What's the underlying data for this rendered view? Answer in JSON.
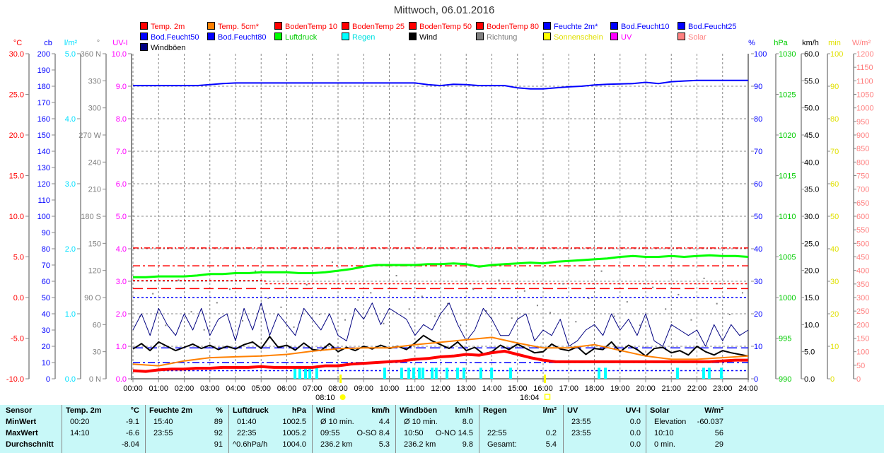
{
  "title": "Mittwoch, 06.01.2016",
  "legend": [
    {
      "label": "Temp. 2m",
      "color": "#ff0000",
      "text": "#ff0000"
    },
    {
      "label": "Temp. 5cm*",
      "color": "#ff8000",
      "text": "#ff0000"
    },
    {
      "label": "BodenTemp 10",
      "color": "#ff0000",
      "text": "#ff0000"
    },
    {
      "label": "BodenTemp 25",
      "color": "#ff0000",
      "text": "#ff0000"
    },
    {
      "label": "BodenTemp 50",
      "color": "#ff0000",
      "text": "#ff0000"
    },
    {
      "label": "BodenTemp 80",
      "color": "#ff0000",
      "text": "#ff0000"
    },
    {
      "label": "Feuchte 2m*",
      "color": "#0000ff",
      "text": "#0000ff"
    },
    {
      "label": "Bod.Feucht10",
      "color": "#0000ff",
      "text": "#0000ff"
    },
    {
      "label": "Bod.Feucht25",
      "color": "#0000ff",
      "text": "#0000ff"
    },
    {
      "label": "Bod.Feucht50",
      "color": "#0000ff",
      "text": "#0000ff"
    },
    {
      "label": "Bod.Feucht80",
      "color": "#0000ff",
      "text": "#0000ff"
    },
    {
      "label": "Luftdruck",
      "color": "#00ff00",
      "text": "#00cc00"
    },
    {
      "label": "Regen",
      "color": "#00ffff",
      "text": "#00e0e0"
    },
    {
      "label": "Wind",
      "color": "#000000",
      "text": "#000000"
    },
    {
      "label": "Richtung",
      "color": "#808080",
      "text": "#808080"
    },
    {
      "label": "Sonnenschein",
      "color": "#ffff00",
      "text": "#e0e000"
    },
    {
      "label": "UV",
      "color": "#ff00ff",
      "text": "#ff00ff"
    },
    {
      "label": "Solar",
      "color": "#ff8080",
      "text": "#ff8080"
    },
    {
      "label": "Windböen",
      "color": "#000080",
      "text": "#000000"
    }
  ],
  "chart_data": {
    "type": "line",
    "title": "Mittwoch, 06.01.2016",
    "x_range_hours": [
      0,
      24
    ],
    "x_ticks": [
      "00:00",
      "01:00",
      "02:00",
      "03:00",
      "04:00",
      "05:00",
      "06:00",
      "07:00",
      "08:00",
      "09:00",
      "10:00",
      "11:00",
      "12:00",
      "13:00",
      "14:00",
      "15:00",
      "16:00",
      "17:00",
      "18:00",
      "19:00",
      "20:00",
      "21:00",
      "22:00",
      "23:00",
      "24:00"
    ],
    "axes": {
      "temp": {
        "unit": "°C",
        "color": "#ff0000",
        "min": -10,
        "max": 30,
        "ticks": [
          "30.0",
          "25.0",
          "20.0",
          "15.0",
          "10.0",
          "5.0",
          "0.0",
          "-5.0",
          "-10.0"
        ]
      },
      "cb": {
        "unit": "cb",
        "color": "#0000ff",
        "min": 0,
        "max": 200,
        "ticks": [
          "200",
          "190",
          "180",
          "170",
          "160",
          "150",
          "140",
          "130",
          "120",
          "110",
          "100",
          "90",
          "80",
          "70",
          "60",
          "50",
          "40",
          "30",
          "20",
          "10",
          "0"
        ]
      },
      "rain": {
        "unit": "l/m²",
        "color": "#00e0ff",
        "min": 0,
        "max": 5,
        "ticks": [
          "5.0",
          "4.0",
          "3.0",
          "2.0",
          "1.0",
          "0.0"
        ]
      },
      "dir": {
        "unit": "°",
        "color": "#808080",
        "min": 0,
        "max": 360,
        "ticks": [
          "360 N",
          "330",
          "300",
          "270 W",
          "240",
          "210",
          "180 S",
          "150",
          "120",
          "90 O",
          "60",
          "30",
          "0 N"
        ]
      },
      "uvi": {
        "unit": "UV-I",
        "color": "#ff00ff",
        "min": 0,
        "max": 10,
        "ticks": [
          "10.0",
          "9.0",
          "8.0",
          "7.0",
          "6.0",
          "5.0",
          "4.0",
          "3.0",
          "2.0",
          "1.0",
          "0.0"
        ]
      },
      "hum": {
        "unit": "%",
        "color": "#0000ff",
        "min": 0,
        "max": 100,
        "ticks": [
          "100",
          "90",
          "80",
          "70",
          "60",
          "50",
          "40",
          "30",
          "20",
          "10",
          "0"
        ]
      },
      "press": {
        "unit": "hPa",
        "color": "#00cc00",
        "min": 990,
        "max": 1030,
        "ticks": [
          "1030",
          "1025",
          "1020",
          "1015",
          "1010",
          "1005",
          "1000",
          "995",
          "990"
        ]
      },
      "wind": {
        "unit": "km/h",
        "color": "#000000",
        "min": 0,
        "max": 60,
        "ticks": [
          "60.0",
          "55.0",
          "50.0",
          "45.0",
          "40.0",
          "35.0",
          "30.0",
          "25.0",
          "20.0",
          "15.0",
          "10.0",
          "5.0",
          "0.0"
        ]
      },
      "sun": {
        "unit": "min",
        "color": "#e0e000",
        "min": 0,
        "max": 100,
        "ticks": [
          "100",
          "90",
          "80",
          "70",
          "60",
          "50",
          "40",
          "30",
          "20",
          "10",
          "0"
        ]
      },
      "solar": {
        "unit": "W/m²",
        "color": "#ff8080",
        "min": 0,
        "max": 1200,
        "ticks": [
          "1200",
          "1150",
          "1100",
          "1050",
          "1000",
          "950",
          "900",
          "850",
          "800",
          "750",
          "700",
          "650",
          "600",
          "550",
          "500",
          "450",
          "400",
          "350",
          "300",
          "250",
          "200",
          "150",
          "100",
          "50",
          "0"
        ]
      }
    },
    "series": [
      {
        "name": "Feuchte 2m*",
        "axis": "hum",
        "color": "#0000ff",
        "width": 2,
        "values": [
          90.2,
          90.2,
          90.2,
          90.2,
          90.2,
          90.2,
          90.5,
          90.8,
          91,
          91,
          91,
          91,
          91,
          91,
          91,
          91,
          91,
          91,
          91,
          91,
          91,
          91,
          91,
          90.5,
          90.2,
          90.6,
          90.5,
          90.2,
          90.2,
          90.2,
          89.5,
          89.2,
          89.2,
          89.5,
          89.8,
          90,
          90.4,
          90.6,
          90.7,
          90.8,
          91.2,
          90.8,
          91.4,
          91.6,
          91.8,
          91.8,
          91.8,
          91.8,
          91.8
        ]
      },
      {
        "name": "Luftdruck",
        "axis": "press",
        "color": "#00ff00",
        "width": 3,
        "values": [
          1002.5,
          1002.5,
          1002.6,
          1002.6,
          1002.6,
          1002.7,
          1002.9,
          1002.9,
          1003,
          1003,
          1003.1,
          1003.1,
          1003.1,
          1003,
          1003,
          1003.1,
          1003.3,
          1003.5,
          1003.8,
          1004,
          1004,
          1004,
          1004,
          1004.1,
          1004.1,
          1004.2,
          1004.1,
          1003.8,
          1004,
          1004.1,
          1004.2,
          1004.3,
          1004.2,
          1004.4,
          1004.5,
          1004.6,
          1004.7,
          1004.8,
          1005,
          1005.1,
          1005,
          1005,
          1005.1,
          1005,
          1005.1,
          1005.2,
          1005.1,
          1005.1,
          1005
        ]
      },
      {
        "name": "Windböen",
        "axis": "wind",
        "color": "#000080",
        "width": 1,
        "values": [
          9,
          12,
          8,
          13,
          10,
          8,
          12,
          9,
          13,
          8,
          11,
          12,
          7,
          13,
          9,
          14,
          8,
          12,
          10,
          8,
          13,
          11,
          9,
          12,
          8,
          7,
          13,
          11,
          14,
          10,
          13,
          12,
          11,
          8,
          10,
          9,
          12,
          14,
          10,
          7,
          9,
          13,
          11,
          8,
          8,
          11,
          12,
          7,
          9,
          8,
          11,
          6,
          7,
          9,
          10,
          8,
          12,
          9,
          11,
          8,
          12,
          7,
          6,
          10,
          9,
          8,
          9,
          6,
          10,
          7,
          10,
          8,
          9
        ]
      },
      {
        "name": "Wind",
        "axis": "wind",
        "color": "#000000",
        "width": 2,
        "values": [
          5.5,
          6.5,
          5.2,
          6.8,
          6,
          5.2,
          5.8,
          6.4,
          5.6,
          6.2,
          5.4,
          6,
          5.5,
          6.3,
          6.8,
          5.6,
          7.8,
          5.8,
          6.2,
          5.3,
          6.6,
          5.4,
          5.2,
          6.5,
          5,
          5.8,
          5.2,
          6,
          5.5,
          6.2,
          5.6,
          6,
          5.4,
          6.6,
          8,
          7,
          6.3,
          5.6,
          6.8,
          5.2,
          5.8,
          4.6,
          5,
          6.2,
          5.4,
          6.4,
          5.6,
          4.8,
          5,
          6.4,
          5.5,
          5.2,
          5.9,
          4.5,
          5.6,
          5.4,
          6.8,
          5,
          6.2,
          5.4,
          4.2,
          5.6,
          5.8,
          4.8,
          5.2,
          4.4,
          6,
          5,
          4.4,
          5.2,
          4.8,
          4.5,
          4.2
        ]
      },
      {
        "name": "Temp. 5cm*",
        "axis": "temp",
        "color": "#ff8000",
        "width": 2,
        "values": [
          -8.2,
          -8.4,
          -7.8,
          -7.4,
          -7.3,
          -7.2,
          -7.0,
          -6.6,
          -6.3,
          -6.2,
          -6.2,
          -5.8,
          -5.5,
          -5.2,
          -4.9,
          -5.6,
          -6.2,
          -6.2,
          -5.8,
          -6.5,
          -7.2,
          -7.6,
          -7.6,
          -7.4,
          -7.2
        ]
      },
      {
        "name": "Temp. 2m",
        "axis": "temp",
        "color": "#ff0000",
        "width": 4,
        "values": [
          -9.0,
          -9.1,
          -8.9,
          -8.8,
          -8.8,
          -8.7,
          -8.7,
          -8.6,
          -8.6,
          -8.6,
          -8.5,
          -8.6,
          -8.6,
          -8.6,
          -8.6,
          -8.4,
          -8.4,
          -8.2,
          -8.1,
          -8.0,
          -7.9,
          -7.8,
          -7.6,
          -7.5,
          -7.3,
          -7.2,
          -7.0,
          -7.1,
          -6.8,
          -6.6,
          -7.0,
          -7.4,
          -7.7,
          -7.9,
          -7.9,
          -7.9,
          -7.9,
          -7.9,
          -7.9,
          -7.9,
          -7.9,
          -7.9,
          -7.9,
          -7.9,
          -7.9,
          -7.9,
          -7.8,
          -7.7,
          -7.7
        ]
      }
    ],
    "constant_lines": [
      {
        "name": "BodenTemp 80",
        "axis": "temp",
        "color": "#ff0000",
        "dash": "8,3,2,3",
        "value": 6.1
      },
      {
        "name": "BodenTemp 50",
        "axis": "temp",
        "color": "#ff0000",
        "dash": "10,4,3,4",
        "value": 3.9
      },
      {
        "name": "BodenTemp 25",
        "axis": "temp",
        "color": "#ff0000",
        "dash": "3,3",
        "value": 2.1,
        "value_after": 1.7,
        "change_hour": 5.15
      },
      {
        "name": "BodenTemp 10",
        "axis": "temp",
        "color": "#ff0000",
        "dash": "14,6",
        "value": 1.1
      },
      {
        "name": "Bod.Feucht10",
        "axis": "cb",
        "color": "#0000ff",
        "dash": "3,3",
        "value": 50
      },
      {
        "name": "Bod.Feucht25",
        "axis": "cb",
        "color": "#0000ff",
        "dash": "14,6",
        "value": 19
      },
      {
        "name": "Bod.Feucht50",
        "axis": "cb",
        "color": "#0000ff",
        "dash": "10,4,3,4",
        "value": 10
      },
      {
        "name": "Bod.Feucht80",
        "axis": "cb",
        "color": "#0000ff",
        "dash": "3,3",
        "value": 5
      }
    ],
    "rain_bars": {
      "axis": "rain",
      "color": "#00ffff",
      "hours": [
        6.32,
        6.51,
        6.73,
        6.9,
        7.17,
        9.82,
        10.48,
        10.76,
        10.95,
        11.17,
        11.31,
        11.67,
        11.83,
        12.25,
        12.66,
        12.91,
        13.57,
        13.99,
        14.73,
        18.18,
        18.43,
        21.24,
        22.26,
        22.48,
        22.95
      ],
      "value": 0.17
    },
    "direction_points": {
      "axis": "dir",
      "color": "#808080",
      "values": [
        70,
        95,
        60,
        110,
        75,
        55,
        85,
        100,
        65,
        120,
        90,
        80,
        58,
        105,
        72,
        130,
        66,
        88,
        96,
        62,
        115,
        78,
        92,
        70,
        84,
        60,
        100,
        76,
        110,
        68,
        98,
        82,
        74,
        106,
        64,
        90,
        120,
        70,
        86,
        60,
        102,
        78,
        94,
        66,
        112,
        84,
        72,
        96
      ]
    },
    "sun_events": [
      {
        "label": "08:10",
        "hour": 8.1,
        "type": "sunrise"
      },
      {
        "label": "16:04",
        "hour": 16.07,
        "type": "sunset"
      }
    ]
  },
  "table": {
    "rows": [
      "Sensor",
      "MinWert",
      "MaxWert",
      "Durchschnitt"
    ],
    "groups": [
      {
        "name": "Temp. 2m",
        "unit": "°C",
        "cells": [
          [
            "00:20",
            "-9.1"
          ],
          [
            "14:10",
            "-6.6"
          ],
          [
            "",
            "-8.04"
          ]
        ]
      },
      {
        "name": "Feuchte 2m",
        "unit": "%",
        "cells": [
          [
            "15:40",
            "89"
          ],
          [
            "23:55",
            "92"
          ],
          [
            "",
            "91"
          ]
        ]
      },
      {
        "name": "Luftdruck",
        "unit": "hPa",
        "cells": [
          [
            "01:40",
            "1002.5"
          ],
          [
            "22:35",
            "1005.2"
          ],
          [
            "^0.6hPa/h",
            "1004.0"
          ]
        ]
      },
      {
        "name": "Wind",
        "unit": "km/h",
        "cells": [
          [
            "Ø 10 min.",
            "4.4"
          ],
          [
            "09:55",
            "O-SO 8.4"
          ],
          [
            "236.2 km",
            "5.3"
          ]
        ]
      },
      {
        "name": "Windböen",
        "unit": "km/h",
        "cells": [
          [
            "Ø 10 min.",
            "8.0"
          ],
          [
            "10:50",
            "O-NO 14.5"
          ],
          [
            "236.2 km",
            "9.8"
          ]
        ]
      },
      {
        "name": "Regen",
        "unit": "l/m²",
        "cells": [
          [
            "",
            ""
          ],
          [
            "22:55",
            "0.2"
          ],
          [
            "Gesamt:",
            "5.4"
          ]
        ]
      },
      {
        "name": "UV",
        "unit": "UV-I",
        "cells": [
          [
            "23:55",
            "0.0"
          ],
          [
            "23:55",
            "0.0"
          ],
          [
            "",
            "0.0"
          ]
        ]
      },
      {
        "name": "Solar",
        "unit": "W/m²",
        "cells": [
          [
            "Elevation",
            "-60.037"
          ],
          [
            "10:10",
            "56"
          ],
          [
            "0 min.",
            "29"
          ]
        ]
      }
    ]
  }
}
